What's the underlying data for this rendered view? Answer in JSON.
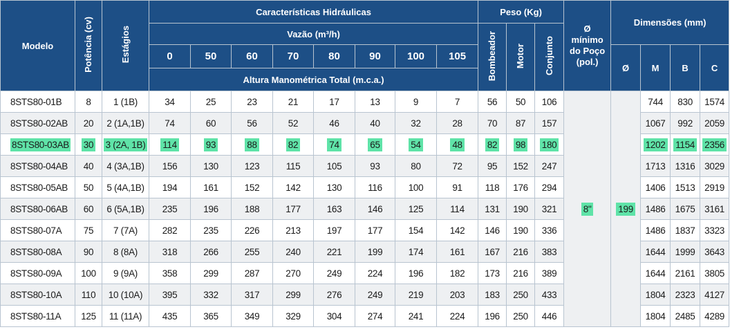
{
  "header": {
    "modelo": "Modelo",
    "potencia": "Potência (cv)",
    "estagios": "Estágios",
    "caracteristicas": "Características Hidráulicas",
    "vazao": "Vazão (m³/h)",
    "altura": "Altura Manométrica Total (m.c.a.)",
    "flows": [
      "0",
      "50",
      "60",
      "70",
      "80",
      "90",
      "100",
      "105"
    ],
    "peso": "Peso (Kg)",
    "bombeador": "Bombeador",
    "motor": "Motor",
    "conjunto": "Conjunto",
    "poco": "Ø mínimo do Poço (pol.)",
    "dimensoes": "Dimensões (mm)",
    "dim_phi": "Ø",
    "dim_m": "M",
    "dim_b": "B",
    "dim_c": "C"
  },
  "poco_value": "8\"",
  "phi_value": "199",
  "highlight_color": "#5fe3a8",
  "rows": [
    {
      "modelo": "8STS80-01B",
      "potencia": "8",
      "estagios": "1 (1B)",
      "h": [
        "34",
        "25",
        "23",
        "21",
        "17",
        "13",
        "9",
        "7"
      ],
      "bombeador": "56",
      "motor": "50",
      "conjunto": "106",
      "m": "744",
      "b": "830",
      "c": "1574"
    },
    {
      "modelo": "8STS80-02AB",
      "potencia": "20",
      "estagios": "2 (1A,1B)",
      "h": [
        "74",
        "60",
        "56",
        "52",
        "46",
        "40",
        "32",
        "28"
      ],
      "bombeador": "70",
      "motor": "87",
      "conjunto": "157",
      "m": "1067",
      "b": "992",
      "c": "2059"
    },
    {
      "modelo": "8STS80-03AB",
      "potencia": "30",
      "estagios": "3 (2A, 1B)",
      "h": [
        "114",
        "93",
        "88",
        "82",
        "74",
        "65",
        "54",
        "48"
      ],
      "bombeador": "82",
      "motor": "98",
      "conjunto": "180",
      "m": "1202",
      "b": "1154",
      "c": "2356",
      "highlighted": true
    },
    {
      "modelo": "8STS80-04AB",
      "potencia": "40",
      "estagios": "4 (3A,1B)",
      "h": [
        "156",
        "130",
        "123",
        "115",
        "105",
        "93",
        "80",
        "72"
      ],
      "bombeador": "95",
      "motor": "152",
      "conjunto": "247",
      "m": "1713",
      "b": "1316",
      "c": "3029"
    },
    {
      "modelo": "8STS80-05AB",
      "potencia": "50",
      "estagios": "5 (4A,1B)",
      "h": [
        "194",
        "161",
        "152",
        "142",
        "130",
        "116",
        "100",
        "91"
      ],
      "bombeador": "118",
      "motor": "176",
      "conjunto": "294",
      "m": "1406",
      "b": "1513",
      "c": "2919"
    },
    {
      "modelo": "8STS80-06AB",
      "potencia": "60",
      "estagios": "6 (5A,1B)",
      "h": [
        "235",
        "196",
        "188",
        "177",
        "163",
        "146",
        "125",
        "114"
      ],
      "bombeador": "131",
      "motor": "190",
      "conjunto": "321",
      "m": "1486",
      "b": "1675",
      "c": "3161"
    },
    {
      "modelo": "8STS80-07A",
      "potencia": "75",
      "estagios": "7 (7A)",
      "h": [
        "282",
        "235",
        "226",
        "213",
        "197",
        "177",
        "154",
        "142"
      ],
      "bombeador": "146",
      "motor": "190",
      "conjunto": "336",
      "m": "1486",
      "b": "1837",
      "c": "3323"
    },
    {
      "modelo": "8STS80-08A",
      "potencia": "90",
      "estagios": "8 (8A)",
      "h": [
        "318",
        "266",
        "255",
        "240",
        "221",
        "199",
        "174",
        "161"
      ],
      "bombeador": "167",
      "motor": "216",
      "conjunto": "383",
      "m": "1644",
      "b": "1999",
      "c": "3643"
    },
    {
      "modelo": "8STS80-09A",
      "potencia": "100",
      "estagios": "9 (9A)",
      "h": [
        "358",
        "299",
        "287",
        "270",
        "249",
        "224",
        "196",
        "182"
      ],
      "bombeador": "173",
      "motor": "216",
      "conjunto": "389",
      "m": "1644",
      "b": "2161",
      "c": "3805"
    },
    {
      "modelo": "8STS80-10A",
      "potencia": "110",
      "estagios": "10 (10A)",
      "h": [
        "395",
        "332",
        "317",
        "299",
        "276",
        "249",
        "219",
        "203"
      ],
      "bombeador": "183",
      "motor": "250",
      "conjunto": "433",
      "m": "1804",
      "b": "2323",
      "c": "4127"
    },
    {
      "modelo": "8STS80-11A",
      "potencia": "125",
      "estagios": "11 (11A)",
      "h": [
        "435",
        "365",
        "349",
        "329",
        "304",
        "274",
        "241",
        "224"
      ],
      "bombeador": "196",
      "motor": "250",
      "conjunto": "446",
      "m": "1804",
      "b": "2485",
      "c": "4289"
    }
  ]
}
